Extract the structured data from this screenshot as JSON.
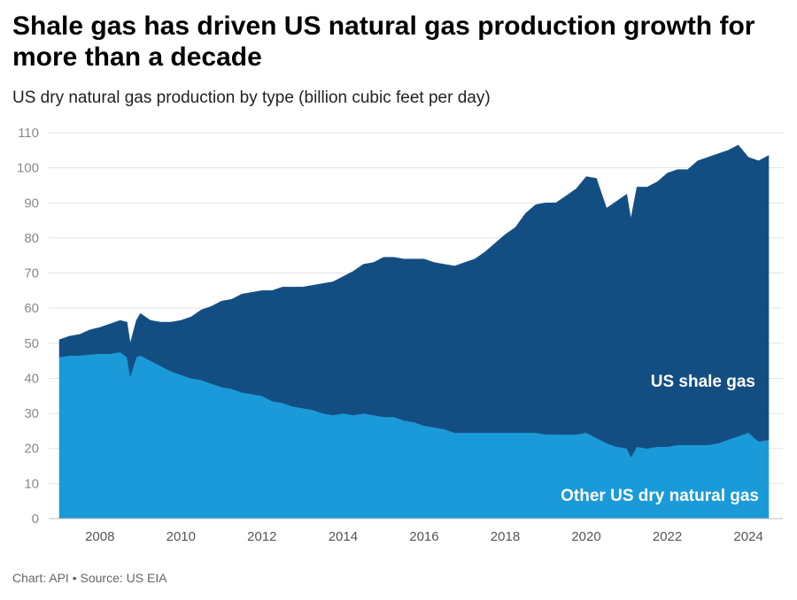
{
  "title": "Shale gas has driven US natural gas production growth for more than a decade",
  "subtitle": "US dry natural gas production by type (billion cubic feet per day)",
  "footer": {
    "chart_credit": "Chart: API",
    "separator": "•",
    "source": "Source: US EIA"
  },
  "colors": {
    "shale": "#134e82",
    "other": "#1a9ad9",
    "grid": "#e2e2e2"
  },
  "chart_data": {
    "type": "area",
    "stacked": true,
    "title": "Shale gas has driven US natural gas production growth for more than a decade",
    "subtitle": "US dry natural gas production by type (billion cubic feet per day)",
    "ylim": [
      0,
      110
    ],
    "yticks": [
      0,
      10,
      20,
      30,
      40,
      50,
      60,
      70,
      80,
      90,
      100,
      110
    ],
    "xlim": [
      2007.0,
      2024.5
    ],
    "xticks": [
      2008,
      2010,
      2012,
      2014,
      2016,
      2018,
      2020,
      2022,
      2024
    ],
    "xtick_labels": [
      "2008",
      "2010",
      "2012",
      "2014",
      "2016",
      "2018",
      "2020",
      "2022",
      "2024"
    ],
    "grid": true,
    "legend": "none",
    "x": [
      2007.0,
      2007.25,
      2007.5,
      2007.75,
      2008.0,
      2008.25,
      2008.5,
      2008.67,
      2008.75,
      2008.9,
      2009.0,
      2009.25,
      2009.5,
      2009.75,
      2010.0,
      2010.25,
      2010.5,
      2010.75,
      2011.0,
      2011.25,
      2011.5,
      2011.75,
      2012.0,
      2012.25,
      2012.5,
      2012.75,
      2013.0,
      2013.25,
      2013.5,
      2013.75,
      2014.0,
      2014.25,
      2014.5,
      2014.75,
      2015.0,
      2015.25,
      2015.5,
      2015.75,
      2016.0,
      2016.25,
      2016.5,
      2016.75,
      2017.0,
      2017.25,
      2017.5,
      2017.75,
      2018.0,
      2018.25,
      2018.5,
      2018.75,
      2019.0,
      2019.25,
      2019.5,
      2019.75,
      2020.0,
      2020.25,
      2020.5,
      2020.75,
      2021.0,
      2021.1,
      2021.25,
      2021.5,
      2021.75,
      2022.0,
      2022.25,
      2022.5,
      2022.75,
      2023.0,
      2023.25,
      2023.5,
      2023.75,
      2024.0,
      2024.25,
      2024.5
    ],
    "series": [
      {
        "name": "Other US dry natural gas",
        "values": [
          46,
          46.5,
          46.5,
          46.8,
          47,
          47,
          47.5,
          46,
          40.5,
          46,
          46.5,
          45,
          43.5,
          42,
          41,
          40,
          39.5,
          38.5,
          37.5,
          37,
          36,
          35.5,
          35,
          33.5,
          33,
          32,
          31.5,
          31,
          30,
          29.5,
          30,
          29.5,
          30,
          29.5,
          29,
          29,
          28,
          27.5,
          26.5,
          26,
          25.5,
          24.5,
          24.5,
          24.5,
          24.5,
          24.5,
          24.5,
          24.5,
          24.5,
          24.5,
          24,
          24,
          24,
          24,
          24.5,
          23,
          21.5,
          20.5,
          20,
          17.5,
          20.5,
          20,
          20.5,
          20.5,
          21,
          21,
          21,
          21,
          21.5,
          22.5,
          23.5,
          24.5,
          22,
          22.5
        ]
      },
      {
        "name": "US shale gas",
        "values": [
          5,
          5.5,
          6,
          7,
          7.5,
          8.5,
          9,
          10,
          9.5,
          10.5,
          12,
          11.5,
          12.5,
          14,
          15.5,
          17.5,
          20,
          22,
          24.5,
          25.5,
          28,
          29,
          30,
          31.5,
          33,
          34,
          34.5,
          35.5,
          37,
          38,
          39,
          41,
          42.5,
          43.5,
          45.5,
          45.5,
          46,
          46.5,
          47.5,
          47,
          47,
          47.5,
          48.5,
          49.5,
          51.5,
          54,
          56.5,
          58.5,
          62.5,
          65,
          66,
          66,
          68,
          70,
          73,
          74,
          67,
          70,
          72.5,
          68,
          74,
          74.5,
          75.5,
          78,
          78.5,
          78.5,
          81,
          82,
          82.5,
          82.5,
          83,
          78.5,
          80,
          81
        ]
      }
    ],
    "series_labels": [
      "US shale gas",
      "Other US dry natural gas"
    ]
  }
}
